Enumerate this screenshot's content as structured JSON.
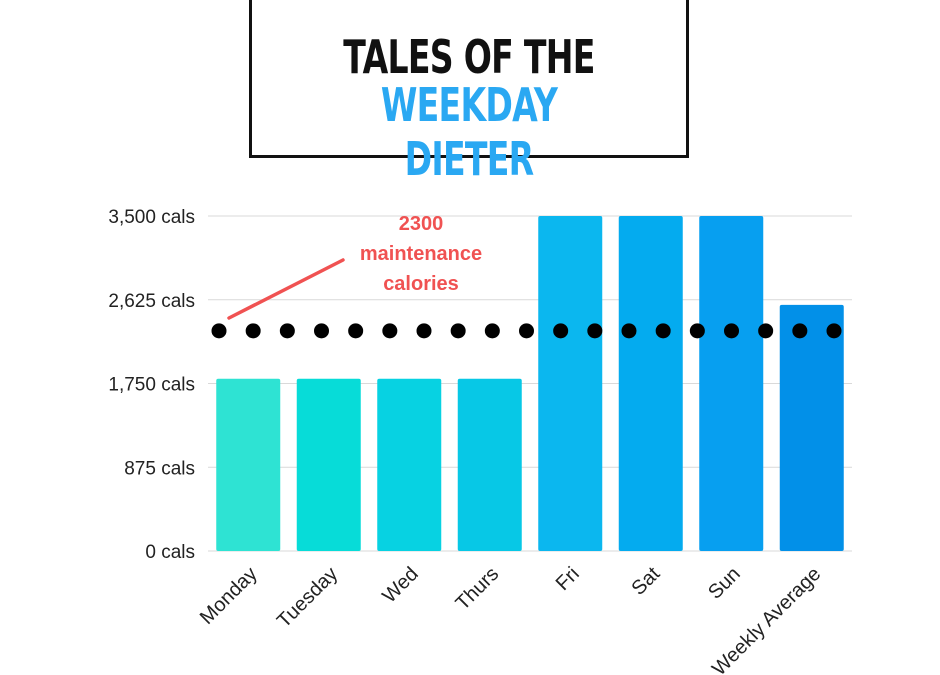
{
  "title": {
    "line1": "TALES OF THE",
    "line2": "WEEKDAY DIETER"
  },
  "colors": {
    "title_accent": "#2aa8f2",
    "annotation": "#f05252",
    "dots": "#000000",
    "grid": "#d9d9d9"
  },
  "chart_data": {
    "type": "bar",
    "title": "TALES OF THE WEEKDAY DIETER",
    "categories": [
      "Monday",
      "Tuesday",
      "Wed",
      "Thurs",
      "Fri",
      "Sat",
      "Sun",
      "Weekly Average"
    ],
    "values": [
      1800,
      1800,
      1800,
      1800,
      3500,
      3500,
      3500,
      2571
    ],
    "bar_colors": [
      "#2ee3d3",
      "#07dcd8",
      "#07d2e2",
      "#07c8e6",
      "#0bb7ef",
      "#04abef",
      "#079ff0",
      "#0290e8"
    ],
    "ylim": [
      0,
      3500
    ],
    "yticks": [
      0,
      875,
      1750,
      2625,
      3500
    ],
    "ytick_labels": [
      "0 cals",
      "875 cals",
      "1,750 cals",
      "2,625 cals",
      "3,500 cals"
    ],
    "grid": true,
    "reference_line": {
      "value": 2300,
      "style": "dotted"
    },
    "annotation": {
      "lines": [
        "2300",
        "maintenance",
        "calories"
      ]
    }
  }
}
